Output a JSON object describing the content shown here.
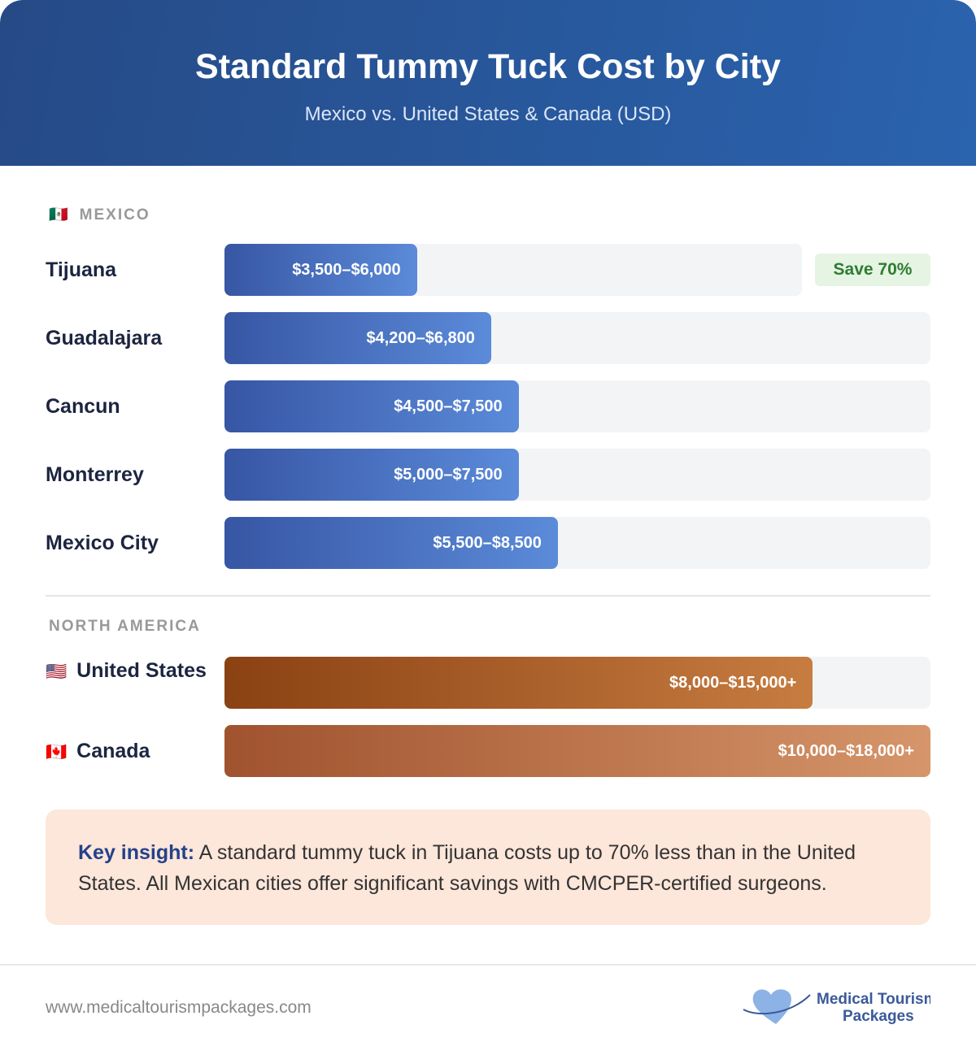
{
  "header": {
    "title": "Standard Tummy Tuck Cost by City",
    "subtitle": "Mexico vs. United States & Canada (USD)"
  },
  "sections": [
    {
      "flag": "🇲🇽",
      "name": "MEXICO",
      "rows": [
        {
          "city": "Tijuana",
          "low": 3500,
          "high": 6000,
          "label": "$3,500–$6,000",
          "badge": "Save 70%"
        },
        {
          "city": "Guadalajara",
          "low": 4200,
          "high": 6800,
          "label": "$4,200–$6,800"
        },
        {
          "city": "Cancun",
          "low": 4500,
          "high": 7500,
          "label": "$4,500–$7,500"
        },
        {
          "city": "Monterrey",
          "low": 5000,
          "high": 7500,
          "label": "$5,000–$7,500"
        },
        {
          "city": "Mexico City",
          "low": 5500,
          "high": 8500,
          "label": "$5,500–$8,500"
        }
      ]
    },
    {
      "name": "NORTH AMERICA",
      "rows": [
        {
          "flag": "🇺🇸",
          "city": "United States",
          "low": 8000,
          "high": 15000,
          "label": "$8,000–$15,000+"
        },
        {
          "flag": "🇨🇦",
          "city": "Canada",
          "low": 10000,
          "high": 18000,
          "label": "$10,000–$18,000+"
        }
      ]
    }
  ],
  "insight": {
    "lead": "Key insight:",
    "text": "A standard tummy tuck in Tijuana costs up to 70% less than in the United States. All Mexican cities offer significant savings with CMCPER-certified surgeons."
  },
  "footer": {
    "url": "www.medicaltourismpackages.com",
    "logo_line1": "Medical Tourism",
    "logo_line2": "Packages"
  }
}
